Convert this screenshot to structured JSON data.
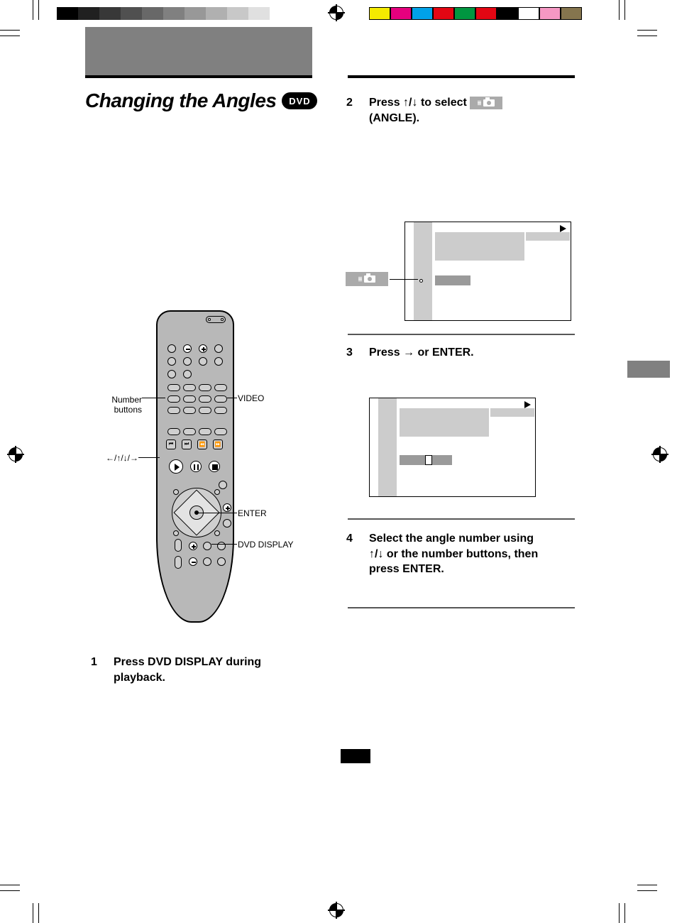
{
  "title": "Changing the Angles",
  "badge": "DVD",
  "remote_labels": {
    "number": "Number buttons",
    "video": "VIDEO",
    "enter": "ENTER",
    "display": "DVD DISPLAY",
    "arrows": "←/↑/↓/→"
  },
  "steps": {
    "s1": {
      "num": "1",
      "text": "Press DVD DISPLAY during playback."
    },
    "s2": {
      "num": "2",
      "pre": "Press ",
      "arrows": "↑/↓",
      "post": " to select ",
      "after": "(ANGLE)."
    },
    "s3": {
      "num": "3",
      "pre": "Press ",
      "arrows": "→",
      "post": " or ENTER."
    },
    "s4": {
      "num": "4",
      "line1": "Select the angle number using",
      "arrows": "↑/↓",
      "line2": " or the number buttons, then press ENTER."
    }
  },
  "colors": {
    "gray_bars": [
      "#000000",
      "#202020",
      "#383838",
      "#505050",
      "#686868",
      "#808080",
      "#989898",
      "#b0b0b0",
      "#c8c8c8",
      "#e0e0e0",
      "#ffffff"
    ],
    "color_bars": [
      "#f5eb00",
      "#e6007e",
      "#00a2e8",
      "#e30613",
      "#009640",
      "#e30613",
      "#000000",
      "#ffffff",
      "#f598c3",
      "#85754e"
    ]
  }
}
